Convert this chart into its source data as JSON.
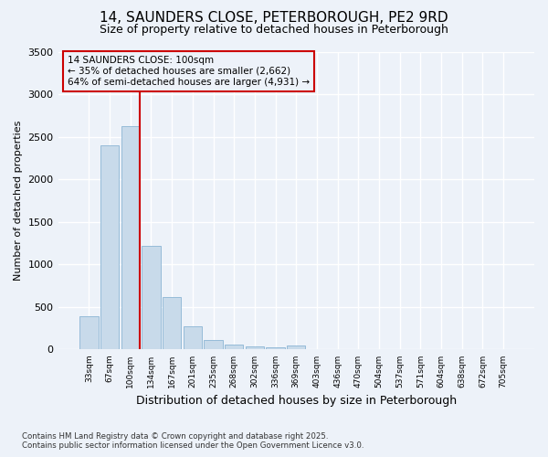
{
  "title_line1": "14, SAUNDERS CLOSE, PETERBOROUGH, PE2 9RD",
  "title_line2": "Size of property relative to detached houses in Peterborough",
  "xlabel": "Distribution of detached houses by size in Peterborough",
  "ylabel": "Number of detached properties",
  "categories": [
    "33sqm",
    "67sqm",
    "100sqm",
    "134sqm",
    "167sqm",
    "201sqm",
    "235sqm",
    "268sqm",
    "302sqm",
    "336sqm",
    "369sqm",
    "403sqm",
    "436sqm",
    "470sqm",
    "504sqm",
    "537sqm",
    "571sqm",
    "604sqm",
    "638sqm",
    "672sqm",
    "705sqm"
  ],
  "values": [
    390,
    2400,
    2620,
    1220,
    620,
    270,
    110,
    60,
    40,
    30,
    50,
    0,
    0,
    0,
    0,
    0,
    0,
    0,
    0,
    0,
    0
  ],
  "bar_color": "#c8daea",
  "bar_edge_color": "#8ab4d4",
  "highlight_index": 2,
  "highlight_color": "#cc0000",
  "annotation_title": "14 SAUNDERS CLOSE: 100sqm",
  "annotation_line2": "← 35% of detached houses are smaller (2,662)",
  "annotation_line3": "64% of semi-detached houses are larger (4,931) →",
  "annotation_box_color": "#cc0000",
  "ylim": [
    0,
    3500
  ],
  "yticks": [
    0,
    500,
    1000,
    1500,
    2000,
    2500,
    3000,
    3500
  ],
  "footer_line1": "Contains HM Land Registry data © Crown copyright and database right 2025.",
  "footer_line2": "Contains public sector information licensed under the Open Government Licence v3.0.",
  "bg_color": "#edf2f9",
  "grid_color": "#ffffff"
}
